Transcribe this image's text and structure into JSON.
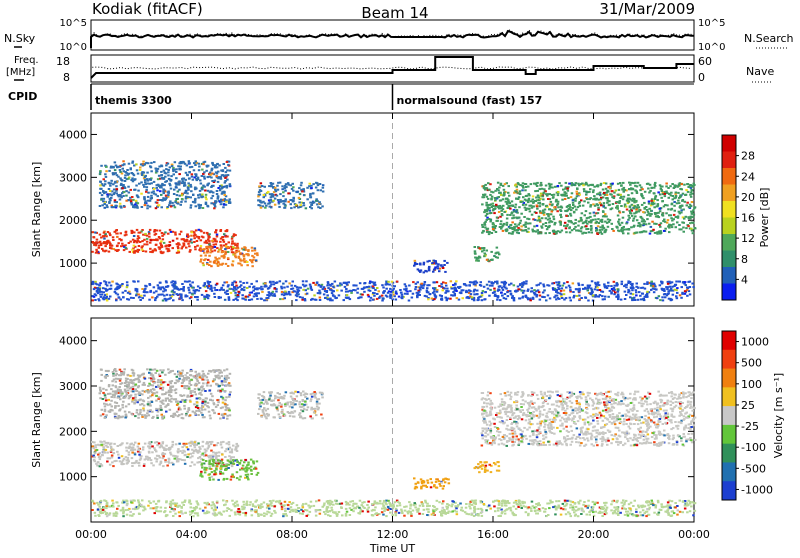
{
  "header": {
    "radar": "Kodiak (fitACF)",
    "beam": "Beam 14",
    "date": "31/Mar/2009"
  },
  "aux": {
    "nsky_label": "N.Sky",
    "nsky_ticks": [
      "10^5",
      "10^0"
    ],
    "nsearch_label": "N.Search",
    "nsearch_ticks": [
      "10^5",
      "10^0"
    ],
    "freq_label_line1": "Freq.",
    "freq_label_line2": "[MHz]",
    "freq_ticks": [
      "18",
      "8"
    ],
    "nave_label": "Nave",
    "nave_ticks": [
      "60",
      "0"
    ],
    "cpid_label": "CPID",
    "cpid_segments": [
      {
        "start_hour": 0,
        "label": "themis 3300"
      },
      {
        "start_hour": 12,
        "label": "normalsound (fast) 157"
      }
    ]
  },
  "chart_data": [
    {
      "type": "heatmap",
      "panel": "power",
      "ylabel": "Slant Range [km]",
      "ylim": [
        0,
        4500
      ],
      "yticks": [
        "1000",
        "2000",
        "3000",
        "4000"
      ],
      "xlim": [
        0,
        24
      ],
      "xticks": [
        "00:00",
        "04:00",
        "08:00",
        "12:00",
        "16:00",
        "20:00",
        "00:00"
      ],
      "colorbar": {
        "label": "Power [dB]",
        "ticks": [
          "4",
          "8",
          "12",
          "16",
          "20",
          "24",
          "28"
        ],
        "colors": [
          "#0a1ef0",
          "#2060b8",
          "#2f8f6a",
          "#4fa85a",
          "#b9d21f",
          "#f0e020",
          "#f0a020",
          "#f06a10",
          "#e02010",
          "#d00000"
        ]
      },
      "regions": [
        {
          "t0": 0.0,
          "t1": 5.8,
          "r0": 1250,
          "r1": 1800,
          "color": "#e83010"
        },
        {
          "t0": 4.3,
          "t1": 6.6,
          "r0": 950,
          "r1": 1400,
          "color": "#f08020"
        },
        {
          "t0": 0.3,
          "t1": 5.5,
          "r0": 2300,
          "r1": 3400,
          "color": "#2f6fb0"
        },
        {
          "t0": 6.6,
          "t1": 9.2,
          "r0": 2300,
          "r1": 2900,
          "color": "#2f6fb0"
        },
        {
          "t0": 12.8,
          "t1": 14.2,
          "r0": 800,
          "r1": 1100,
          "color": "#1c3fc8"
        },
        {
          "t0": 15.2,
          "t1": 16.2,
          "r0": 1050,
          "r1": 1400,
          "color": "#3f9a60"
        },
        {
          "t0": 15.5,
          "t1": 24.0,
          "r0": 1700,
          "r1": 2900,
          "color": "#3f9a60"
        },
        {
          "t0": 0.0,
          "t1": 24.0,
          "r0": 150,
          "r1": 600,
          "color": "#2050d0"
        }
      ]
    },
    {
      "type": "heatmap",
      "panel": "velocity",
      "ylabel": "Slant Range [km]",
      "ylim": [
        0,
        4500
      ],
      "yticks": [
        "1000",
        "2000",
        "3000",
        "4000"
      ],
      "xlim": [
        0,
        24
      ],
      "xticks": [
        "00:00",
        "04:00",
        "08:00",
        "12:00",
        "16:00",
        "20:00",
        "00:00"
      ],
      "xlabel": "Time UT",
      "colorbar": {
        "label": "Velocity [m s⁻¹]",
        "ticks": [
          "1000",
          "500",
          "100",
          "25",
          "-25",
          "-100",
          "-500",
          "-1000"
        ],
        "colors": [
          "#1c3fd0",
          "#2070b0",
          "#30905a",
          "#62c63a",
          "#c8c8c8",
          "#f0c020",
          "#f08010",
          "#f04010",
          "#e00000"
        ]
      },
      "regions": [
        {
          "t0": 0.0,
          "t1": 5.8,
          "r0": 1250,
          "r1": 1800,
          "color": "#c4c4c0"
        },
        {
          "t0": 4.3,
          "t1": 6.6,
          "r0": 950,
          "r1": 1400,
          "color": "#6ac040"
        },
        {
          "t0": 0.3,
          "t1": 5.5,
          "r0": 2300,
          "r1": 3400,
          "color": "#b4b4b0"
        },
        {
          "t0": 6.6,
          "t1": 9.2,
          "r0": 2300,
          "r1": 2900,
          "color": "#c0c0bc"
        },
        {
          "t0": 12.8,
          "t1": 14.2,
          "r0": 750,
          "r1": 1000,
          "color": "#f0a010"
        },
        {
          "t0": 15.2,
          "t1": 16.2,
          "r0": 1100,
          "r1": 1350,
          "color": "#f0b020"
        },
        {
          "t0": 15.5,
          "t1": 24.0,
          "r0": 1700,
          "r1": 2900,
          "color": "#c8c8c4"
        },
        {
          "t0": 0.0,
          "t1": 24.0,
          "r0": 150,
          "r1": 500,
          "color": "#b8d898"
        }
      ]
    }
  ]
}
